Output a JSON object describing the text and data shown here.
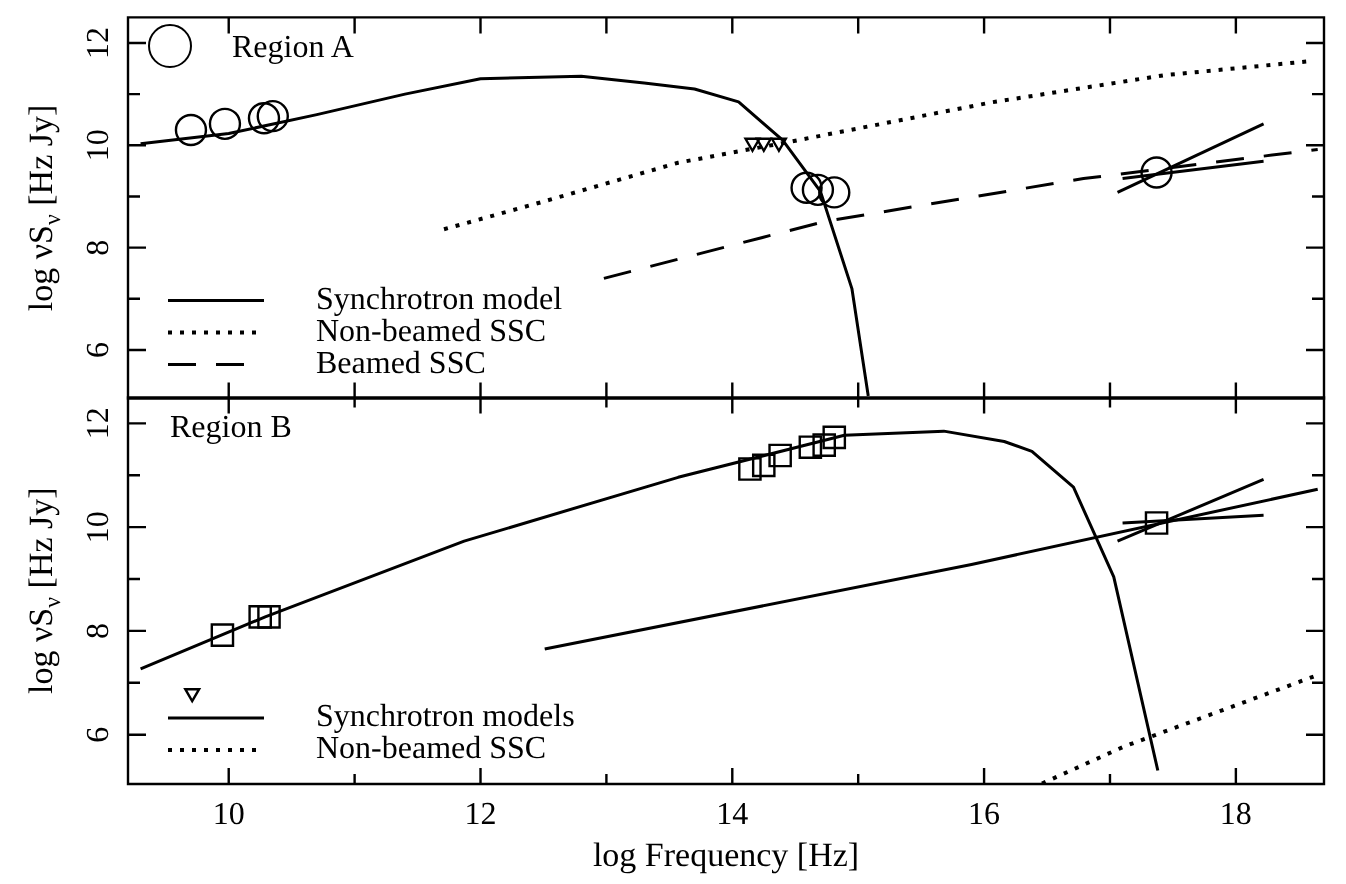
{
  "chart_data": [
    {
      "type": "line",
      "ylabel": "log νS$_{ν}$ [Hz Jy]",
      "annotations": [
        "Region A"
      ],
      "legend": "bottom left",
      "tick_labels": "y",
      "xlim": [
        9.2,
        18.7
      ],
      "ylim": [
        5.05,
        12.5
      ],
      "xticks": [
        {
          "value": 10,
          "label": null
        },
        {
          "value": 11,
          "label": null
        },
        {
          "value": 12,
          "label": null
        },
        {
          "value": 13,
          "label": null
        },
        {
          "value": 14,
          "label": null
        },
        {
          "value": 15,
          "label": null
        },
        {
          "value": 16,
          "label": null
        },
        {
          "value": 17,
          "label": null
        },
        {
          "value": 18,
          "label": null
        }
      ],
      "yticks": [
        6,
        {
          "value": 7,
          "label": null
        },
        8,
        {
          "value": 9,
          "label": null
        },
        10,
        {
          "value": 11,
          "label": null
        },
        12
      ],
      "series": [
        {
          "name": "Synchrotron model",
          "line_style": "solid",
          "marker": "none",
          "color": "#000000",
          "x": [
            9.3,
            10.0,
            10.7,
            11.4,
            12.0,
            12.8,
            13.3,
            13.7,
            14.05,
            14.4,
            14.7,
            14.95,
            15.08
          ],
          "values": [
            10.03,
            10.23,
            10.6,
            11.0,
            11.3,
            11.35,
            11.22,
            11.1,
            10.85,
            10.1,
            9.1,
            7.2,
            5.1
          ]
        },
        {
          "name": "Non-beamed SSC",
          "line_style": "dotted",
          "marker": "none",
          "color": "#000000",
          "x": [
            11.71,
            12.5,
            13.57,
            14.48,
            16.06,
            17.43,
            18.57
          ],
          "values": [
            8.36,
            8.9,
            9.66,
            10.08,
            10.84,
            11.37,
            11.64
          ]
        },
        {
          "name": "Beamed SSC",
          "line_style": "dashed",
          "marker": "none",
          "color": "#000000",
          "x": [
            12.98,
            14.73,
            16.79,
            18.65
          ],
          "values": [
            7.4,
            8.51,
            9.35,
            9.92
          ]
        },
        {
          "type": "line",
          "line_style": "solid",
          "marker": "none",
          "color": "#000000",
          "x": [
            17.06,
            18.22
          ],
          "values": [
            9.08,
            10.42
          ]
        },
        {
          "type": "line",
          "line_style": "solid",
          "marker": "none",
          "color": "#000000",
          "x": [
            17.1,
            18.22
          ],
          "values": [
            9.35,
            9.69
          ]
        },
        {
          "type": "scatter",
          "marker": "circle",
          "color": "#000000",
          "x": [
            9.7,
            9.97,
            10.28,
            10.35,
            14.59,
            14.68,
            14.81,
            17.37
          ],
          "values": [
            10.3,
            10.42,
            10.53,
            10.57,
            9.17,
            9.13,
            9.08,
            9.47
          ]
        },
        {
          "type": "scatter",
          "marker": "triangle",
          "color": "#000000",
          "x": [
            14.16,
            14.25,
            14.37
          ],
          "values": [
            10.05,
            10.05,
            10.05
          ]
        }
      ]
    },
    {
      "type": "line",
      "xlabel": "log Frequency [Hz]",
      "ylabel": "log νS$_{ν}$ [Hz Jy]",
      "annotations": [
        "Region B"
      ],
      "legend": "bottom left",
      "xlim": [
        9.2,
        18.7
      ],
      "ylim": [
        5.05,
        12.5
      ],
      "xticks": [
        10,
        {
          "value": 11,
          "label": null
        },
        12,
        {
          "value": 13,
          "label": null
        },
        14,
        {
          "value": 15,
          "label": null
        },
        16,
        {
          "value": 17,
          "label": null
        },
        18
      ],
      "yticks": [
        6,
        {
          "value": 7,
          "label": null
        },
        8,
        {
          "value": 9,
          "label": null
        },
        10,
        {
          "value": 11,
          "label": null
        },
        12
      ],
      "series": [
        {
          "name": "Synchrotron models",
          "line_style": "solid",
          "marker": "none",
          "color": "#000000",
          "x": [
            9.3,
            10.29,
            11.87,
            13.57,
            14.89,
            15.68,
            16.16,
            16.38,
            16.71,
            17.03,
            17.38
          ],
          "values": [
            7.27,
            8.27,
            9.73,
            10.96,
            11.77,
            11.85,
            11.65,
            11.46,
            10.77,
            9.04,
            5.31
          ]
        },
        {
          "name": "Non-beamed SSC",
          "line_style": "dotted",
          "marker": "none",
          "color": "#000000",
          "x": [
            16.46,
            17.11,
            18.65
          ],
          "values": [
            5.06,
            5.77,
            7.15
          ]
        },
        {
          "type": "line",
          "line_style": "solid",
          "marker": "none",
          "color": "#000000",
          "x": [
            12.51,
            15.9,
            18.65
          ],
          "values": [
            7.65,
            9.28,
            10.73
          ]
        },
        {
          "type": "line",
          "line_style": "solid",
          "marker": "none",
          "color": "#000000",
          "x": [
            17.06,
            18.22
          ],
          "values": [
            9.73,
            10.92
          ]
        },
        {
          "type": "line",
          "line_style": "solid",
          "marker": "none",
          "color": "#000000",
          "x": [
            17.1,
            18.22
          ],
          "values": [
            10.08,
            10.23
          ]
        },
        {
          "type": "scatter",
          "marker": "square",
          "color": "#000000",
          "x": [
            9.95,
            10.25,
            10.32,
            14.14,
            14.25,
            14.38,
            14.62,
            14.73,
            14.81,
            17.37
          ],
          "values": [
            7.92,
            8.27,
            8.27,
            11.12,
            11.19,
            11.38,
            11.54,
            11.58,
            11.73,
            10.08
          ]
        },
        {
          "type": "scatter",
          "marker": "triangle",
          "color": "#000000",
          "x": [
            9.71
          ],
          "values": [
            6.8
          ]
        }
      ]
    }
  ]
}
